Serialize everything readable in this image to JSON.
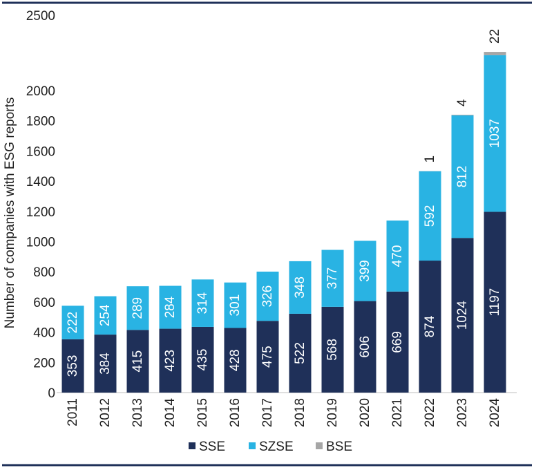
{
  "chart_data": {
    "type": "bar",
    "stacked": true,
    "title": "",
    "xlabel": "",
    "ylabel": "Number of companies with ESG reports",
    "ylim": [
      0,
      2500
    ],
    "yticks": [
      0,
      200,
      400,
      600,
      800,
      1000,
      1200,
      1400,
      1600,
      1800,
      2000,
      2500
    ],
    "grid": false,
    "legend_position": "bottom",
    "categories": [
      "2011",
      "2012",
      "2013",
      "2014",
      "2015",
      "2016",
      "2017",
      "2018",
      "2019",
      "2020",
      "2021",
      "2022",
      "2023",
      "2024"
    ],
    "series": [
      {
        "name": "SSE",
        "color": "#1f3059",
        "label_color": "#ffffff",
        "values": [
          353,
          384,
          415,
          423,
          435,
          428,
          475,
          522,
          568,
          606,
          669,
          874,
          1024,
          1197
        ],
        "labels": [
          "353",
          "384",
          "415",
          "423",
          "435",
          "428",
          "475",
          "522",
          "568",
          "606",
          "669",
          "874",
          "1024",
          "1197"
        ]
      },
      {
        "name": "SZSE",
        "color": "#29b3e3",
        "label_color": "#ffffff",
        "values": [
          222,
          254,
          289,
          284,
          314,
          301,
          326,
          348,
          377,
          399,
          470,
          592,
          812,
          1037
        ],
        "labels": [
          "222",
          "254",
          "289",
          "284",
          "314",
          "301",
          "326",
          "348",
          "377",
          "399",
          "470",
          "592",
          "812",
          "1037"
        ]
      },
      {
        "name": "BSE",
        "color": "#a6a6a6",
        "label_color": "#1f1f1f",
        "values": [
          0,
          0,
          0,
          0,
          0,
          0,
          0,
          0,
          0,
          0,
          0,
          1,
          4,
          22
        ],
        "labels": [
          "",
          "",
          "",
          "",
          "",
          "",
          "",
          "",
          "",
          "",
          "",
          "1",
          "4",
          "22"
        ]
      }
    ]
  }
}
